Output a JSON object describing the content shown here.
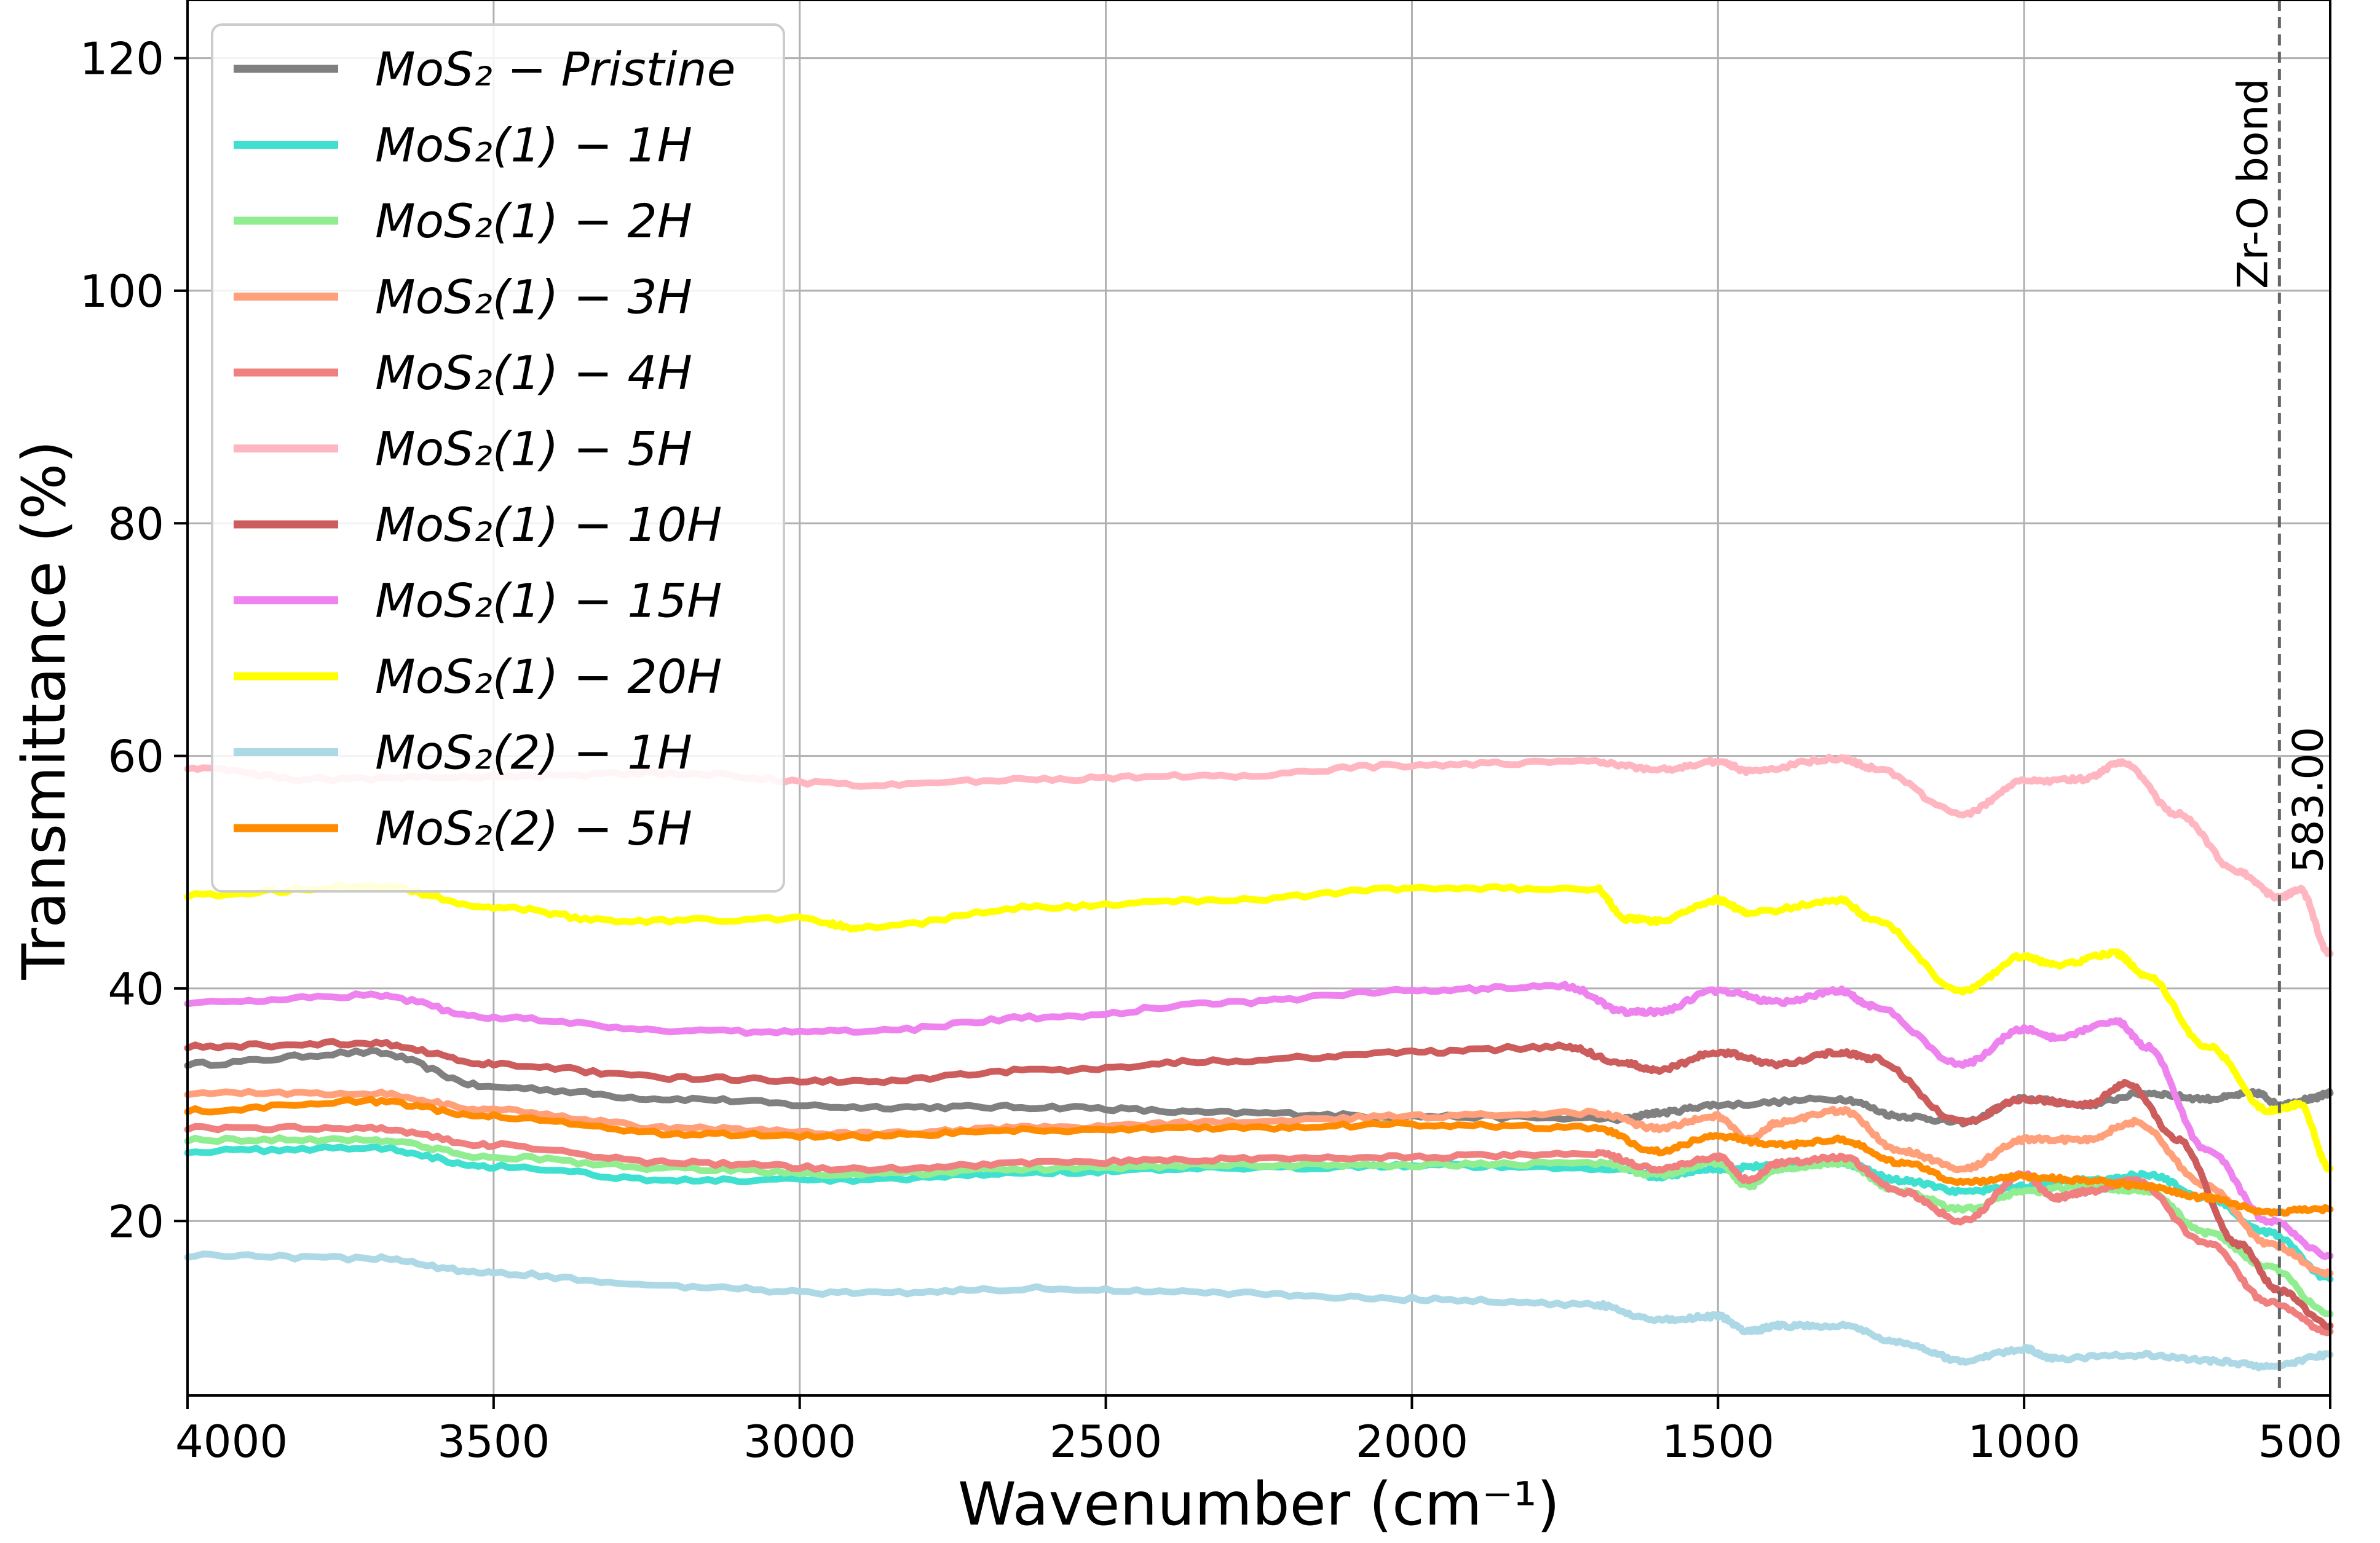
{
  "chart_data": {
    "type": "line",
    "xlabel": "Wavenumber (cm⁻¹)",
    "ylabel": "Transmittance (%)",
    "xlim": [
      4000,
      500
    ],
    "ylim": [
      5,
      125
    ],
    "x_ticks": [
      4000,
      3500,
      3000,
      2500,
      2000,
      1500,
      1000,
      500
    ],
    "y_ticks": [
      20,
      40,
      60,
      80,
      100,
      120
    ],
    "grid": true,
    "legend_position": "top-left",
    "vline": {
      "x": 583,
      "label": "Zr-O bond",
      "value_label": "583.00",
      "color": "#666666"
    },
    "series": [
      {
        "name": "MoS₂ − Pristine",
        "color": "#808080",
        "points": [
          [
            4000,
            33.5
          ],
          [
            3700,
            34.5
          ],
          [
            3500,
            31.5
          ],
          [
            3200,
            30.5
          ],
          [
            2900,
            29.8
          ],
          [
            2600,
            29.8
          ],
          [
            2300,
            29.3
          ],
          [
            2000,
            29.0
          ],
          [
            1650,
            28.8
          ],
          [
            1600,
            29.3
          ],
          [
            1500,
            30.0
          ],
          [
            1300,
            30.5
          ],
          [
            1200,
            29.0
          ],
          [
            1100,
            28.5
          ],
          [
            1000,
            30.5
          ],
          [
            900,
            30.0
          ],
          [
            800,
            31.0
          ],
          [
            700,
            30.5
          ],
          [
            620,
            31.0
          ],
          [
            583,
            30.0
          ],
          [
            530,
            30.5
          ],
          [
            500,
            31.0
          ]
        ]
      },
      {
        "name": "MoS₂(1) − 1H",
        "color": "#40E0D0",
        "points": [
          [
            4000,
            26.0
          ],
          [
            3700,
            26.3
          ],
          [
            3500,
            24.7
          ],
          [
            3200,
            23.5
          ],
          [
            2900,
            23.5
          ],
          [
            2600,
            24.2
          ],
          [
            2300,
            24.5
          ],
          [
            2000,
            24.8
          ],
          [
            1650,
            24.5
          ],
          [
            1600,
            23.8
          ],
          [
            1500,
            24.5
          ],
          [
            1400,
            24.8
          ],
          [
            1300,
            25.0
          ],
          [
            1200,
            23.5
          ],
          [
            1100,
            22.5
          ],
          [
            1000,
            23.0
          ],
          [
            900,
            23.5
          ],
          [
            800,
            24.0
          ],
          [
            700,
            22.0
          ],
          [
            600,
            19.0
          ],
          [
            500,
            15.0
          ]
        ]
      },
      {
        "name": "MoS₂(1) − 2H",
        "color": "#90EE90",
        "points": [
          [
            4000,
            27.0
          ],
          [
            3700,
            27.0
          ],
          [
            3500,
            25.5
          ],
          [
            3200,
            24.5
          ],
          [
            2900,
            24.0
          ],
          [
            2600,
            24.5
          ],
          [
            2300,
            24.8
          ],
          [
            2000,
            24.8
          ],
          [
            1700,
            25.0
          ],
          [
            1600,
            24.0
          ],
          [
            1500,
            25.0
          ],
          [
            1450,
            23.0
          ],
          [
            1400,
            24.5
          ],
          [
            1300,
            25.0
          ],
          [
            1200,
            22.5
          ],
          [
            1100,
            21.0
          ],
          [
            1000,
            22.5
          ],
          [
            900,
            23.0
          ],
          [
            800,
            22.5
          ],
          [
            700,
            19.0
          ],
          [
            600,
            16.0
          ],
          [
            500,
            12.0
          ]
        ]
      },
      {
        "name": "MoS₂(1) − 3H",
        "color": "#FFA07A",
        "points": [
          [
            4000,
            31.0
          ],
          [
            3700,
            31.0
          ],
          [
            3500,
            29.5
          ],
          [
            3200,
            28.0
          ],
          [
            2900,
            27.5
          ],
          [
            2600,
            28.0
          ],
          [
            2300,
            28.5
          ],
          [
            2000,
            29.0
          ],
          [
            1700,
            29.3
          ],
          [
            1600,
            28.0
          ],
          [
            1500,
            29.0
          ],
          [
            1450,
            27.0
          ],
          [
            1400,
            28.5
          ],
          [
            1300,
            29.5
          ],
          [
            1200,
            26.0
          ],
          [
            1100,
            24.5
          ],
          [
            1000,
            27.0
          ],
          [
            900,
            27.0
          ],
          [
            820,
            28.5
          ],
          [
            700,
            23.0
          ],
          [
            600,
            18.0
          ],
          [
            500,
            15.5
          ]
        ]
      },
      {
        "name": "MoS₂(1) − 4H",
        "color": "#F08080",
        "points": [
          [
            4000,
            28.0
          ],
          [
            3700,
            28.0
          ],
          [
            3500,
            26.5
          ],
          [
            3200,
            25.0
          ],
          [
            2900,
            24.5
          ],
          [
            2600,
            25.0
          ],
          [
            2300,
            25.3
          ],
          [
            2000,
            25.5
          ],
          [
            1700,
            25.8
          ],
          [
            1600,
            24.5
          ],
          [
            1500,
            25.5
          ],
          [
            1450,
            23.5
          ],
          [
            1400,
            25.0
          ],
          [
            1300,
            25.5
          ],
          [
            1200,
            22.5
          ],
          [
            1100,
            20.0
          ],
          [
            1000,
            24.0
          ],
          [
            950,
            22.0
          ],
          [
            900,
            22.5
          ],
          [
            820,
            23.5
          ],
          [
            700,
            18.0
          ],
          [
            600,
            13.0
          ],
          [
            500,
            10.5
          ]
        ]
      },
      {
        "name": "MoS₂(1) − 5H",
        "color": "#FFB6C1",
        "points": [
          [
            4000,
            59.0
          ],
          [
            3800,
            58.0
          ],
          [
            3500,
            58.2
          ],
          [
            3200,
            58.5
          ],
          [
            2900,
            57.5
          ],
          [
            2600,
            58.0
          ],
          [
            2300,
            58.3
          ],
          [
            2000,
            59.2
          ],
          [
            1700,
            59.5
          ],
          [
            1600,
            58.8
          ],
          [
            1500,
            59.5
          ],
          [
            1450,
            58.7
          ],
          [
            1300,
            59.8
          ],
          [
            1250,
            59.0
          ],
          [
            1100,
            55.0
          ],
          [
            1000,
            57.8
          ],
          [
            900,
            58.0
          ],
          [
            840,
            59.5
          ],
          [
            750,
            55.0
          ],
          [
            650,
            50.0
          ],
          [
            583,
            47.8
          ],
          [
            550,
            48.5
          ],
          [
            500,
            43.0
          ]
        ]
      },
      {
        "name": "MoS₂(1) − 10H",
        "color": "#CD5C5C",
        "points": [
          [
            4000,
            35.0
          ],
          [
            3700,
            35.3
          ],
          [
            3500,
            33.5
          ],
          [
            3200,
            32.3
          ],
          [
            2900,
            32.0
          ],
          [
            2600,
            33.0
          ],
          [
            2300,
            33.8
          ],
          [
            2000,
            34.5
          ],
          [
            1750,
            35.0
          ],
          [
            1650,
            33.5
          ],
          [
            1600,
            33.0
          ],
          [
            1500,
            34.5
          ],
          [
            1400,
            33.5
          ],
          [
            1300,
            34.5
          ],
          [
            1250,
            34.0
          ],
          [
            1100,
            28.5
          ],
          [
            1000,
            30.5
          ],
          [
            900,
            30.0
          ],
          [
            830,
            31.8
          ],
          [
            750,
            27.0
          ],
          [
            650,
            18.0
          ],
          [
            583,
            14.0
          ],
          [
            500,
            11.0
          ]
        ]
      },
      {
        "name": "MoS₂(1) − 15H",
        "color": "#EE82EE",
        "points": [
          [
            4000,
            38.8
          ],
          [
            3700,
            39.4
          ],
          [
            3500,
            37.5
          ],
          [
            3200,
            36.3
          ],
          [
            2900,
            36.3
          ],
          [
            2600,
            37.5
          ],
          [
            2300,
            38.8
          ],
          [
            2000,
            39.8
          ],
          [
            1750,
            40.2
          ],
          [
            1650,
            38.0
          ],
          [
            1600,
            38.0
          ],
          [
            1500,
            39.8
          ],
          [
            1400,
            38.8
          ],
          [
            1300,
            39.8
          ],
          [
            1250,
            38.5
          ],
          [
            1100,
            33.5
          ],
          [
            1000,
            36.5
          ],
          [
            950,
            35.8
          ],
          [
            850,
            37.2
          ],
          [
            800,
            35.0
          ],
          [
            700,
            26.0
          ],
          [
            600,
            20.0
          ],
          [
            500,
            17.0
          ]
        ]
      },
      {
        "name": "MoS₂(1) − 20H",
        "color": "#FFFF00",
        "points": [
          [
            4000,
            48.0
          ],
          [
            3700,
            48.8
          ],
          [
            3500,
            47.0
          ],
          [
            3300,
            45.8
          ],
          [
            3000,
            46.0
          ],
          [
            2900,
            45.2
          ],
          [
            2600,
            47.0
          ],
          [
            2300,
            47.6
          ],
          [
            2000,
            48.6
          ],
          [
            1700,
            48.6
          ],
          [
            1650,
            46.0
          ],
          [
            1600,
            45.8
          ],
          [
            1500,
            47.6
          ],
          [
            1450,
            46.5
          ],
          [
            1300,
            47.6
          ],
          [
            1250,
            46.0
          ],
          [
            1100,
            39.8
          ],
          [
            1000,
            42.8
          ],
          [
            950,
            42.0
          ],
          [
            850,
            43.0
          ],
          [
            800,
            41.0
          ],
          [
            700,
            35.0
          ],
          [
            600,
            29.5
          ],
          [
            550,
            30.0
          ],
          [
            500,
            24.5
          ]
        ]
      },
      {
        "name": "MoS₂(2) − 1H",
        "color": "#ADD8E6",
        "points": [
          [
            4000,
            17.0
          ],
          [
            3700,
            16.8
          ],
          [
            3500,
            15.5
          ],
          [
            3200,
            14.3
          ],
          [
            2900,
            13.8
          ],
          [
            2600,
            14.2
          ],
          [
            2300,
            13.8
          ],
          [
            2000,
            13.3
          ],
          [
            1700,
            12.8
          ],
          [
            1600,
            11.5
          ],
          [
            1500,
            11.8
          ],
          [
            1450,
            10.5
          ],
          [
            1400,
            11.0
          ],
          [
            1300,
            11.0
          ],
          [
            1200,
            9.5
          ],
          [
            1100,
            8.0
          ],
          [
            1000,
            9.0
          ],
          [
            950,
            8.2
          ],
          [
            800,
            8.5
          ],
          [
            700,
            8.0
          ],
          [
            600,
            7.5
          ],
          [
            500,
            8.5
          ]
        ]
      },
      {
        "name": "MoS₂(2) − 5H",
        "color": "#FF8C00",
        "points": [
          [
            4000,
            29.5
          ],
          [
            3700,
            30.3
          ],
          [
            3500,
            29.0
          ],
          [
            3200,
            27.5
          ],
          [
            2900,
            27.3
          ],
          [
            2600,
            27.8
          ],
          [
            2300,
            28.0
          ],
          [
            2000,
            28.3
          ],
          [
            1700,
            28.0
          ],
          [
            1600,
            26.0
          ],
          [
            1500,
            27.3
          ],
          [
            1400,
            26.5
          ],
          [
            1300,
            27.0
          ],
          [
            1200,
            25.0
          ],
          [
            1100,
            23.3
          ],
          [
            1000,
            23.8
          ],
          [
            900,
            23.5
          ],
          [
            800,
            23.0
          ],
          [
            700,
            22.0
          ],
          [
            600,
            20.8
          ],
          [
            500,
            21.0
          ]
        ]
      }
    ]
  }
}
